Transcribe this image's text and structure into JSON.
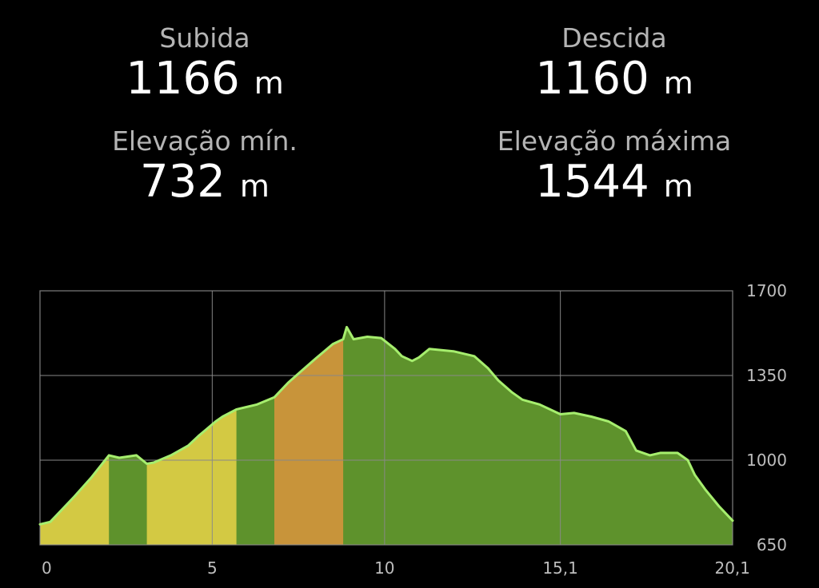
{
  "stats": {
    "ascent": {
      "label": "Subida",
      "value": "1166",
      "unit": "m"
    },
    "descent": {
      "label": "Descida",
      "value": "1160",
      "unit": "m"
    },
    "min_elevation": {
      "label": "Elevação mín.",
      "value": "732",
      "unit": "m"
    },
    "max_elevation": {
      "label": "Elevação máxima",
      "value": "1544",
      "unit": "m"
    }
  },
  "colors": {
    "background": "#000000",
    "grid": "#8a8a8a",
    "profile_line": "#a6ee6e",
    "gentle": "#5e922c",
    "moderate": "#d3c943",
    "steep": "#c8943a",
    "tick_text": "#bdbdbd"
  },
  "chart_data": {
    "type": "area",
    "title": "",
    "xlabel": "",
    "ylabel": "",
    "xlim": [
      0,
      20.1
    ],
    "ylim": [
      650,
      1700
    ],
    "x_ticks": [
      {
        "value": 0,
        "label": "0"
      },
      {
        "value": 5,
        "label": "5"
      },
      {
        "value": 10,
        "label": "10"
      },
      {
        "value": 15.1,
        "label": "15,1"
      },
      {
        "value": 20.1,
        "label": "20,1"
      }
    ],
    "y_ticks": [
      {
        "value": 1700,
        "label": "1700"
      },
      {
        "value": 1350,
        "label": "1350"
      },
      {
        "value": 1000,
        "label": "1000"
      },
      {
        "value": 650,
        "label": "650"
      }
    ],
    "grid": true,
    "x": [
      0,
      0.3,
      1.0,
      1.5,
      2.0,
      2.3,
      2.8,
      3.1,
      3.3,
      3.8,
      4.3,
      4.6,
      5.1,
      5.3,
      5.7,
      6.3,
      6.8,
      7.2,
      7.6,
      8.0,
      8.5,
      8.8,
      8.9,
      9.1,
      9.5,
      9.9,
      10.3,
      10.5,
      10.8,
      11.0,
      11.3,
      12.0,
      12.6,
      13.0,
      13.3,
      13.7,
      14.0,
      14.5,
      15.1,
      15.5,
      16.0,
      16.5,
      17.0,
      17.3,
      17.7,
      18.0,
      18.5,
      18.8,
      19.0,
      19.3,
      19.7,
      20.1
    ],
    "y": [
      735,
      745,
      850,
      930,
      1020,
      1010,
      1020,
      985,
      990,
      1020,
      1060,
      1100,
      1160,
      1180,
      1210,
      1230,
      1260,
      1320,
      1370,
      1420,
      1480,
      1500,
      1550,
      1500,
      1510,
      1505,
      1460,
      1430,
      1410,
      1425,
      1460,
      1450,
      1430,
      1380,
      1330,
      1280,
      1250,
      1230,
      1190,
      1195,
      1180,
      1160,
      1120,
      1040,
      1020,
      1030,
      1030,
      1000,
      940,
      880,
      810,
      750
    ],
    "segments": [
      {
        "from": 0,
        "to": 2.0,
        "class": "moderate"
      },
      {
        "from": 2.0,
        "to": 3.1,
        "class": "gentle"
      },
      {
        "from": 3.1,
        "to": 5.7,
        "class": "moderate"
      },
      {
        "from": 5.7,
        "to": 6.8,
        "class": "gentle"
      },
      {
        "from": 6.8,
        "to": 8.8,
        "class": "steep"
      },
      {
        "from": 8.8,
        "to": 20.1,
        "class": "gentle"
      }
    ]
  }
}
